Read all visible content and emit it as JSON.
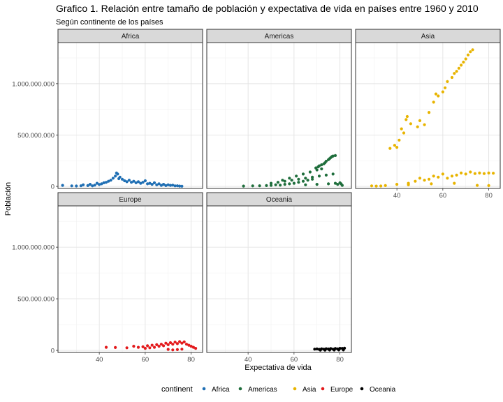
{
  "chart_data": {
    "type": "scatter",
    "title": "Grafico 1. Relación entre tamaño de población y expectativa de vida en países entre 1960 y 2010",
    "subtitle": "Según continente de los países",
    "xlabel": "Expectativa de vida",
    "ylabel": "Población",
    "xlim": [
      22,
      85
    ],
    "ylim": [
      -20000000,
      1400000000
    ],
    "x_ticks": [
      40,
      60,
      80
    ],
    "x_tick_labels": [
      "40",
      "60",
      "80"
    ],
    "y_ticks": [
      0,
      500000000,
      1000000000
    ],
    "y_tick_labels": [
      "0",
      "500.000.000",
      "1.000.000.000"
    ],
    "grid": true,
    "legend_title": "continent",
    "legend_position": "bottom",
    "series": [
      {
        "name": "Africa",
        "color": "#1f6fb4",
        "points": [
          [
            24,
            10000000
          ],
          [
            28,
            5000000
          ],
          [
            30,
            4000000
          ],
          [
            32,
            6000000
          ],
          [
            33,
            15000000
          ],
          [
            35,
            8000000
          ],
          [
            36,
            20000000
          ],
          [
            37,
            5000000
          ],
          [
            38,
            12000000
          ],
          [
            39,
            30000000
          ],
          [
            40,
            18000000
          ],
          [
            41,
            25000000
          ],
          [
            42,
            35000000
          ],
          [
            43,
            40000000
          ],
          [
            44,
            50000000
          ],
          [
            45,
            60000000
          ],
          [
            46,
            80000000
          ],
          [
            47,
            100000000
          ],
          [
            47.5,
            130000000
          ],
          [
            48,
            120000000
          ],
          [
            48.5,
            75000000
          ],
          [
            49,
            90000000
          ],
          [
            50,
            70000000
          ],
          [
            51,
            55000000
          ],
          [
            52,
            45000000
          ],
          [
            53,
            60000000
          ],
          [
            54,
            40000000
          ],
          [
            55,
            50000000
          ],
          [
            56,
            35000000
          ],
          [
            57,
            45000000
          ],
          [
            58,
            30000000
          ],
          [
            59,
            40000000
          ],
          [
            60,
            55000000
          ],
          [
            61,
            25000000
          ],
          [
            62,
            30000000
          ],
          [
            63,
            20000000
          ],
          [
            64,
            35000000
          ],
          [
            65,
            15000000
          ],
          [
            66,
            25000000
          ],
          [
            67,
            10000000
          ],
          [
            68,
            20000000
          ],
          [
            69,
            8000000
          ],
          [
            70,
            15000000
          ],
          [
            71,
            10000000
          ],
          [
            72,
            12000000
          ],
          [
            73,
            5000000
          ],
          [
            74,
            6000000
          ],
          [
            75,
            3000000
          ],
          [
            76,
            2000000
          ]
        ]
      },
      {
        "name": "Americas",
        "color": "#1f6e3c",
        "points": [
          [
            38,
            3000000
          ],
          [
            42,
            5000000
          ],
          [
            45,
            6000000
          ],
          [
            48,
            8000000
          ],
          [
            50,
            10000000
          ],
          [
            52,
            15000000
          ],
          [
            54,
            12000000
          ],
          [
            56,
            20000000
          ],
          [
            58,
            25000000
          ],
          [
            60,
            30000000
          ],
          [
            62,
            40000000
          ],
          [
            64,
            50000000
          ],
          [
            66,
            60000000
          ],
          [
            68,
            70000000
          ],
          [
            69.5,
            180000000
          ],
          [
            70.5,
            190000000
          ],
          [
            71,
            200000000
          ],
          [
            72,
            210000000
          ],
          [
            73,
            220000000
          ],
          [
            73.5,
            230000000
          ],
          [
            74,
            245000000
          ],
          [
            75,
            260000000
          ],
          [
            75.5,
            270000000
          ],
          [
            76,
            280000000
          ],
          [
            76.5,
            290000000
          ],
          [
            77,
            295000000
          ],
          [
            78,
            300000000
          ],
          [
            55,
            60000000
          ],
          [
            58,
            80000000
          ],
          [
            61,
            100000000
          ],
          [
            64,
            120000000
          ],
          [
            67,
            140000000
          ],
          [
            70,
            160000000
          ],
          [
            72,
            170000000
          ],
          [
            50,
            30000000
          ],
          [
            53,
            40000000
          ],
          [
            56,
            50000000
          ],
          [
            59,
            60000000
          ],
          [
            62,
            70000000
          ],
          [
            65,
            80000000
          ],
          [
            68,
            90000000
          ],
          [
            71,
            100000000
          ],
          [
            74,
            110000000
          ],
          [
            77,
            120000000
          ],
          [
            78,
            30000000
          ],
          [
            79,
            20000000
          ],
          [
            80,
            35000000
          ],
          [
            81,
            10000000
          ],
          [
            80.5,
            25000000
          ],
          [
            65,
            15000000
          ],
          [
            70,
            20000000
          ],
          [
            75,
            25000000
          ]
        ]
      },
      {
        "name": "Asia",
        "color": "#e8b400",
        "points": [
          [
            29,
            5000000
          ],
          [
            31,
            3000000
          ],
          [
            33,
            4000000
          ],
          [
            35,
            8000000
          ],
          [
            37,
            370000000
          ],
          [
            39,
            400000000
          ],
          [
            40,
            380000000
          ],
          [
            41,
            450000000
          ],
          [
            42,
            560000000
          ],
          [
            43,
            520000000
          ],
          [
            44,
            650000000
          ],
          [
            44.5,
            680000000
          ],
          [
            46,
            610000000
          ],
          [
            49,
            580000000
          ],
          [
            50,
            640000000
          ],
          [
            52,
            600000000
          ],
          [
            54,
            720000000
          ],
          [
            56,
            820000000
          ],
          [
            57,
            900000000
          ],
          [
            58,
            880000000
          ],
          [
            60,
            920000000
          ],
          [
            61,
            960000000
          ],
          [
            62,
            1020000000
          ],
          [
            64,
            1060000000
          ],
          [
            65,
            1100000000
          ],
          [
            66,
            1120000000
          ],
          [
            67,
            1150000000
          ],
          [
            68,
            1180000000
          ],
          [
            69,
            1210000000
          ],
          [
            70,
            1240000000
          ],
          [
            71,
            1280000000
          ],
          [
            72,
            1310000000
          ],
          [
            73,
            1330000000
          ],
          [
            45,
            30000000
          ],
          [
            48,
            50000000
          ],
          [
            50,
            80000000
          ],
          [
            52,
            60000000
          ],
          [
            54,
            70000000
          ],
          [
            56,
            100000000
          ],
          [
            58,
            90000000
          ],
          [
            60,
            120000000
          ],
          [
            62,
            80000000
          ],
          [
            64,
            100000000
          ],
          [
            66,
            110000000
          ],
          [
            68,
            130000000
          ],
          [
            70,
            120000000
          ],
          [
            72,
            140000000
          ],
          [
            74,
            125000000
          ],
          [
            76,
            130000000
          ],
          [
            78,
            125000000
          ],
          [
            80,
            130000000
          ],
          [
            82,
            128000000
          ],
          [
            40,
            20000000
          ],
          [
            45,
            15000000
          ],
          [
            55,
            25000000
          ],
          [
            65,
            30000000
          ],
          [
            75,
            10000000
          ],
          [
            80,
            8000000
          ]
        ]
      },
      {
        "name": "Europe",
        "color": "#e31a1c",
        "points": [
          [
            43,
            30000000
          ],
          [
            47,
            28000000
          ],
          [
            52,
            25000000
          ],
          [
            55,
            40000000
          ],
          [
            57,
            30000000
          ],
          [
            59,
            35000000
          ],
          [
            60,
            20000000
          ],
          [
            61,
            45000000
          ],
          [
            62,
            25000000
          ],
          [
            63,
            50000000
          ],
          [
            64,
            30000000
          ],
          [
            65,
            55000000
          ],
          [
            66,
            40000000
          ],
          [
            67,
            60000000
          ],
          [
            68,
            45000000
          ],
          [
            69,
            70000000
          ],
          [
            70,
            55000000
          ],
          [
            71,
            75000000
          ],
          [
            72,
            60000000
          ],
          [
            73,
            80000000
          ],
          [
            74,
            65000000
          ],
          [
            75,
            85000000
          ],
          [
            76,
            70000000
          ],
          [
            77,
            82000000
          ],
          [
            78,
            60000000
          ],
          [
            79,
            50000000
          ],
          [
            80,
            40000000
          ],
          [
            81,
            30000000
          ],
          [
            82,
            20000000
          ],
          [
            70,
            10000000
          ],
          [
            72,
            5000000
          ],
          [
            74,
            8000000
          ],
          [
            76,
            12000000
          ]
        ]
      },
      {
        "name": "Oceania",
        "color": "#000000",
        "points": [
          [
            69,
            12000000
          ],
          [
            70,
            14000000
          ],
          [
            71,
            10000000
          ],
          [
            72,
            15000000
          ],
          [
            73,
            11000000
          ],
          [
            74,
            16000000
          ],
          [
            75,
            13000000
          ],
          [
            76,
            17000000
          ],
          [
            77,
            12000000
          ],
          [
            78,
            18000000
          ],
          [
            79,
            14000000
          ],
          [
            80,
            20000000
          ],
          [
            81,
            19000000
          ],
          [
            82,
            21000000
          ],
          [
            71.5,
            2000000
          ],
          [
            73.5,
            3000000
          ],
          [
            75.5,
            3500000
          ],
          [
            77.5,
            4000000
          ],
          [
            79.5,
            4200000
          ],
          [
            81.5,
            4400000
          ]
        ]
      }
    ],
    "panels": [
      "Africa",
      "Americas",
      "Asia",
      "Europe",
      "Oceania"
    ]
  }
}
